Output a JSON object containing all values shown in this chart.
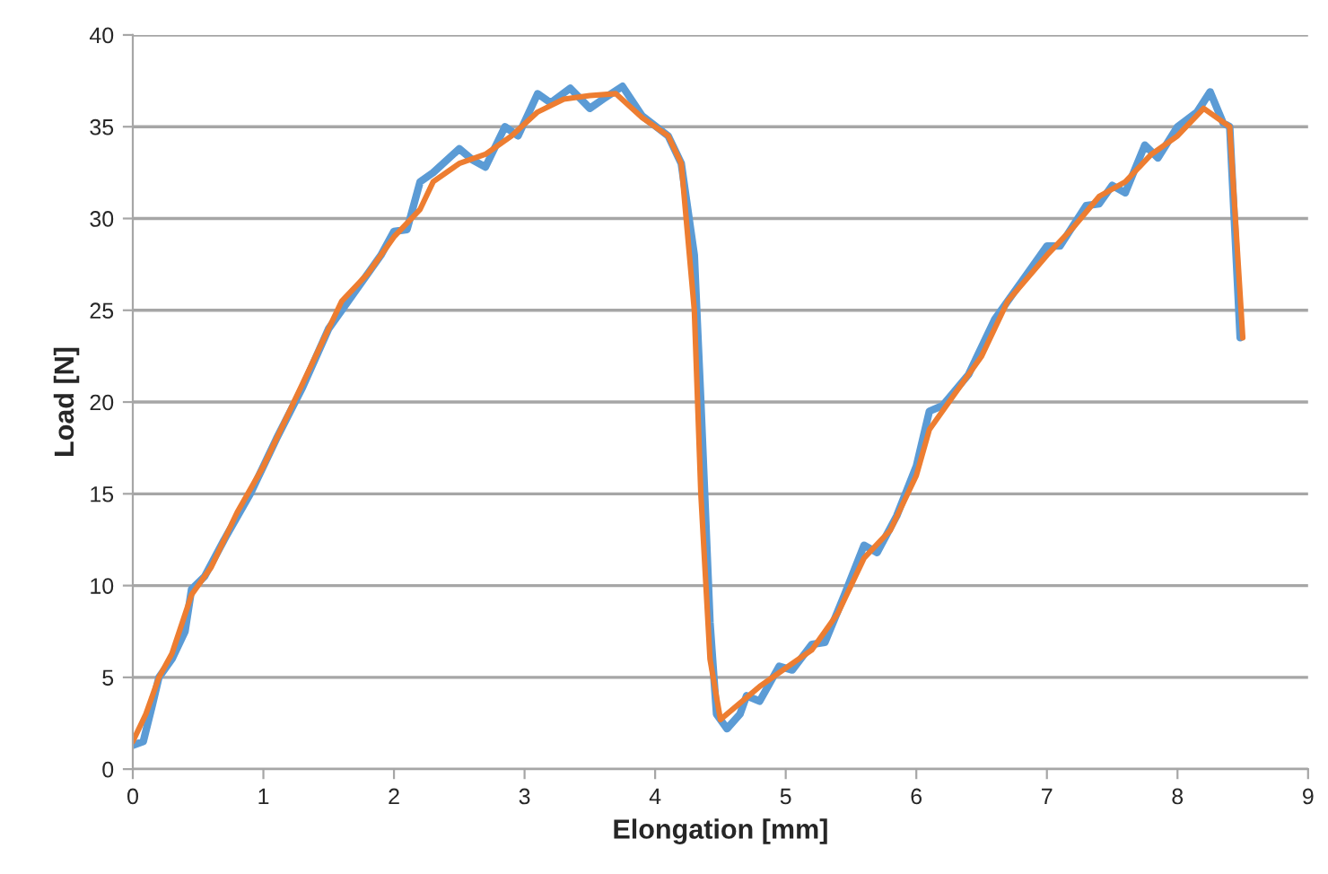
{
  "chart_data": {
    "type": "line",
    "xlabel": "Elongation [mm]",
    "ylabel": "Load [N]",
    "xlim": [
      0,
      9
    ],
    "xticks": [
      0,
      1,
      2,
      3,
      4,
      5,
      6,
      7,
      8,
      9
    ],
    "ylim": [
      0,
      40
    ],
    "yticks": [
      0,
      5,
      10,
      15,
      20,
      25,
      30,
      35,
      40
    ],
    "grid": "y",
    "legend": false,
    "marker": "none",
    "line_style": "solid",
    "series": [
      {
        "color": "#5b9bd5",
        "x": [
          0,
          0.08,
          0.15,
          0.2,
          0.3,
          0.4,
          0.45,
          0.55,
          0.7,
          0.9,
          1.1,
          1.3,
          1.5,
          1.7,
          1.9,
          2.0,
          2.1,
          2.2,
          2.3,
          2.5,
          2.6,
          2.7,
          2.85,
          2.95,
          3.1,
          3.2,
          3.35,
          3.5,
          3.6,
          3.75,
          3.9,
          4.1,
          4.2,
          4.3,
          4.35,
          4.42,
          4.47,
          4.55,
          4.65,
          4.7,
          4.8,
          4.95,
          5.05,
          5.2,
          5.3,
          5.45,
          5.6,
          5.7,
          5.85,
          6.0,
          6.1,
          6.2,
          6.4,
          6.6,
          6.8,
          7.0,
          7.1,
          7.3,
          7.4,
          7.5,
          7.6,
          7.75,
          7.85,
          8.0,
          8.15,
          8.25,
          8.35,
          8.4,
          8.48
        ],
        "values": [
          1.3,
          1.5,
          3.5,
          5,
          6,
          7.5,
          9.8,
          10.5,
          12.5,
          15,
          18,
          20.8,
          24,
          26,
          28,
          29.3,
          29.4,
          32,
          32.5,
          33.8,
          33.2,
          32.8,
          35,
          34.5,
          36.8,
          36.3,
          37.1,
          36,
          36.5,
          37.2,
          35.6,
          34.5,
          33,
          28,
          20,
          8,
          3,
          2.2,
          3,
          4,
          3.7,
          5.6,
          5.4,
          6.8,
          6.9,
          9.5,
          12.2,
          11.8,
          13.8,
          16.5,
          19.5,
          19.8,
          21.5,
          24.5,
          26.5,
          28.5,
          28.5,
          30.7,
          30.8,
          31.8,
          31.4,
          34,
          33.3,
          35,
          35.8,
          36.9,
          35.2,
          35,
          23.5
        ]
      },
      {
        "color": "#ed7d31",
        "x": [
          0,
          0.1,
          0.2,
          0.3,
          0.45,
          0.6,
          0.8,
          1.0,
          1.2,
          1.4,
          1.6,
          1.8,
          2.0,
          2.2,
          2.3,
          2.5,
          2.7,
          2.9,
          3.1,
          3.3,
          3.5,
          3.7,
          3.9,
          4.1,
          4.2,
          4.3,
          4.35,
          4.42,
          4.5,
          4.6,
          4.8,
          5.0,
          5.2,
          5.4,
          5.6,
          5.8,
          6.0,
          6.1,
          6.3,
          6.5,
          6.7,
          7.0,
          7.2,
          7.4,
          7.6,
          7.8,
          8.0,
          8.2,
          8.4,
          8.5
        ],
        "values": [
          1.5,
          3,
          5,
          6.3,
          9.5,
          11,
          14,
          16.5,
          19.5,
          22.5,
          25.5,
          27,
          29,
          30.5,
          32,
          33,
          33.5,
          34.5,
          35.8,
          36.5,
          36.7,
          36.8,
          35.5,
          34.5,
          33,
          25,
          15,
          6,
          2.7,
          3.3,
          4.5,
          5.5,
          6.5,
          8.5,
          11.5,
          13,
          16,
          18.5,
          20.5,
          22.5,
          25.5,
          28,
          29.5,
          31.2,
          32,
          33.5,
          34.5,
          36,
          35,
          23.5
        ]
      }
    ]
  }
}
